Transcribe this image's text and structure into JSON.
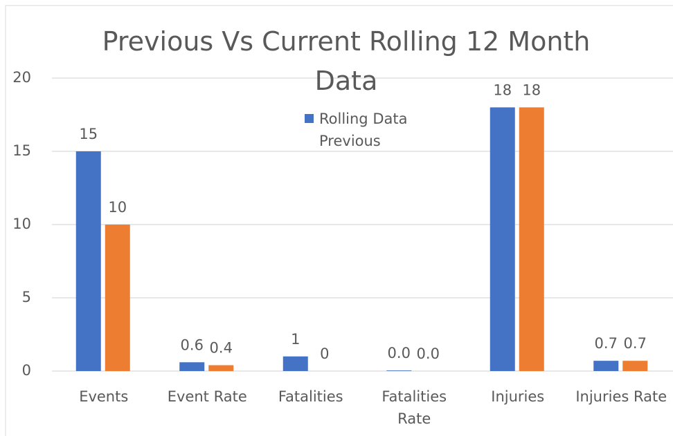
{
  "chart_data": {
    "type": "bar",
    "title": "Previous Vs Current Rolling 12 Month Data",
    "categories": [
      "Events",
      "Event Rate",
      "Fatalities",
      "Fatalities Rate",
      "Injuries",
      "Injuries Rate"
    ],
    "series": [
      {
        "name": "Rolling Data Previous",
        "color": "#4472c4",
        "values": [
          15,
          0.6,
          1,
          0.04,
          18,
          0.7
        ],
        "value_labels": [
          "15",
          "0.6",
          "1",
          "0.0",
          "18",
          "0.7"
        ]
      },
      {
        "color": "#ed7d31",
        "values": [
          10,
          0.4,
          0,
          0.0,
          18,
          0.7
        ],
        "value_labels": [
          "10",
          "0.4",
          "0",
          "0.0",
          "18",
          "0.7"
        ]
      }
    ],
    "ylim": [
      0,
      20
    ],
    "yticks": [
      0,
      5,
      10,
      15,
      20
    ],
    "grid": true,
    "legend": "top"
  }
}
